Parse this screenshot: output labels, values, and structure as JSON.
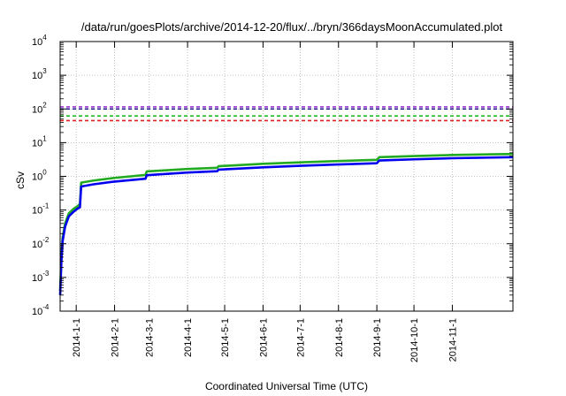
{
  "chart_data": {
    "type": "line",
    "title": "/data/run/goesPlots/archive/2014-12-20/flux/../bryn/366daysMoonAccumulated.plot",
    "xlabel": "Coordinated Universal Time (UTC)",
    "ylabel": "cSv",
    "x_is_date": true,
    "xlim": [
      "2013-12-19",
      "2014-12-20"
    ],
    "ylim": [
      0.0001,
      10000
    ],
    "yscale": "log",
    "grid": true,
    "xticks": [
      "2014-1-1",
      "2014-2-1",
      "2014-3-1",
      "2014-4-1",
      "2014-5-1",
      "2014-6-1",
      "2014-7-1",
      "2014-8-1",
      "2014-9-1",
      "2014-10-1",
      "2014-11-1"
    ],
    "yticks": [
      {
        "value": 0.0001,
        "base": "10",
        "exp": "-4"
      },
      {
        "value": 0.001,
        "base": "10",
        "exp": "-3"
      },
      {
        "value": 0.01,
        "base": "10",
        "exp": "-2"
      },
      {
        "value": 0.1,
        "base": "10",
        "exp": "-1"
      },
      {
        "value": 1,
        "base": "10",
        "exp": "0"
      },
      {
        "value": 10,
        "base": "10",
        "exp": "1"
      },
      {
        "value": 100,
        "base": "10",
        "exp": "2"
      },
      {
        "value": 1000,
        "base": "10",
        "exp": "3"
      },
      {
        "value": 10000,
        "base": "10",
        "exp": "4"
      }
    ],
    "reference_lines": [
      {
        "value": 115,
        "color": "#9933cc",
        "style": "dashed"
      },
      {
        "value": 100,
        "color": "#1a1a8c",
        "style": "dashed"
      },
      {
        "value": 62,
        "color": "#22bb22",
        "style": "dashed"
      },
      {
        "value": 45,
        "color": "#dd2222",
        "style": "dashed"
      }
    ],
    "series": [
      {
        "color": "#22aa22",
        "points": [
          [
            "2013-12-19",
            0.0004
          ],
          [
            "2013-12-20",
            0.004
          ],
          [
            "2013-12-21",
            0.015
          ],
          [
            "2013-12-23",
            0.04
          ],
          [
            "2013-12-26",
            0.08
          ],
          [
            "2013-12-30",
            0.11
          ],
          [
            "2014-01-02",
            0.13
          ],
          [
            "2014-01-04",
            0.15
          ],
          [
            "2014-01-05",
            0.65
          ],
          [
            "2014-01-15",
            0.75
          ],
          [
            "2014-02-01",
            0.9
          ],
          [
            "2014-02-26",
            1.1
          ],
          [
            "2014-02-27",
            1.4
          ],
          [
            "2014-04-01",
            1.65
          ],
          [
            "2014-04-25",
            1.8
          ],
          [
            "2014-04-26",
            2.0
          ],
          [
            "2014-06-01",
            2.35
          ],
          [
            "2014-07-01",
            2.6
          ],
          [
            "2014-08-01",
            2.85
          ],
          [
            "2014-09-01",
            3.1
          ],
          [
            "2014-09-03",
            3.7
          ],
          [
            "2014-10-01",
            4.0
          ],
          [
            "2014-11-01",
            4.3
          ],
          [
            "2014-12-20",
            4.6
          ]
        ]
      },
      {
        "color": "#0000ee",
        "points": [
          [
            "2013-12-19",
            0.0003
          ],
          [
            "2013-12-20",
            0.003
          ],
          [
            "2013-12-21",
            0.012
          ],
          [
            "2013-12-23",
            0.032
          ],
          [
            "2013-12-26",
            0.065
          ],
          [
            "2013-12-30",
            0.09
          ],
          [
            "2014-01-02",
            0.11
          ],
          [
            "2014-01-04",
            0.12
          ],
          [
            "2014-01-05",
            0.5
          ],
          [
            "2014-01-15",
            0.58
          ],
          [
            "2014-02-01",
            0.7
          ],
          [
            "2014-02-26",
            0.85
          ],
          [
            "2014-02-27",
            1.08
          ],
          [
            "2014-04-01",
            1.3
          ],
          [
            "2014-04-25",
            1.42
          ],
          [
            "2014-04-26",
            1.58
          ],
          [
            "2014-06-01",
            1.85
          ],
          [
            "2014-07-01",
            2.05
          ],
          [
            "2014-08-01",
            2.25
          ],
          [
            "2014-09-01",
            2.45
          ],
          [
            "2014-09-03",
            2.95
          ],
          [
            "2014-10-01",
            3.2
          ],
          [
            "2014-11-01",
            3.45
          ],
          [
            "2014-12-20",
            3.7
          ]
        ]
      }
    ]
  }
}
